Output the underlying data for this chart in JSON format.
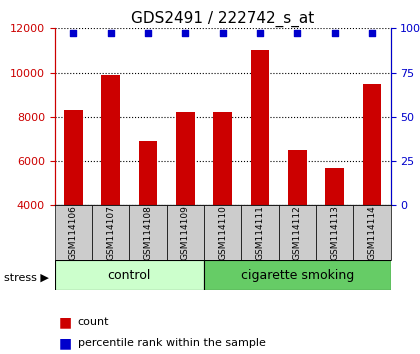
{
  "title": "GDS2491 / 222742_s_at",
  "samples": [
    "GSM114106",
    "GSM114107",
    "GSM114108",
    "GSM114109",
    "GSM114110",
    "GSM114111",
    "GSM114112",
    "GSM114113",
    "GSM114114"
  ],
  "counts": [
    8300,
    9900,
    6900,
    8200,
    8200,
    11000,
    6500,
    5700,
    9500
  ],
  "percentiles": [
    100,
    100,
    100,
    100,
    100,
    100,
    100,
    100,
    100
  ],
  "ylim_left": [
    4000,
    12000
  ],
  "ylim_right": [
    0,
    100
  ],
  "yticks_left": [
    4000,
    6000,
    8000,
    10000,
    12000
  ],
  "yticks_right": [
    0,
    25,
    50,
    75,
    100
  ],
  "bar_color": "#cc0000",
  "percentile_color": "#0000cc",
  "control_samples": 4,
  "smoking_samples": 5,
  "control_label": "control",
  "smoking_label": "cigarette smoking",
  "stress_label": "stress",
  "legend_count_label": "count",
  "legend_pct_label": "percentile rank within the sample",
  "control_color": "#ccffcc",
  "smoking_color": "#66cc66",
  "xlabel_area_color": "#cccccc",
  "title_fontsize": 11,
  "axis_fontsize": 9,
  "tick_fontsize": 8
}
